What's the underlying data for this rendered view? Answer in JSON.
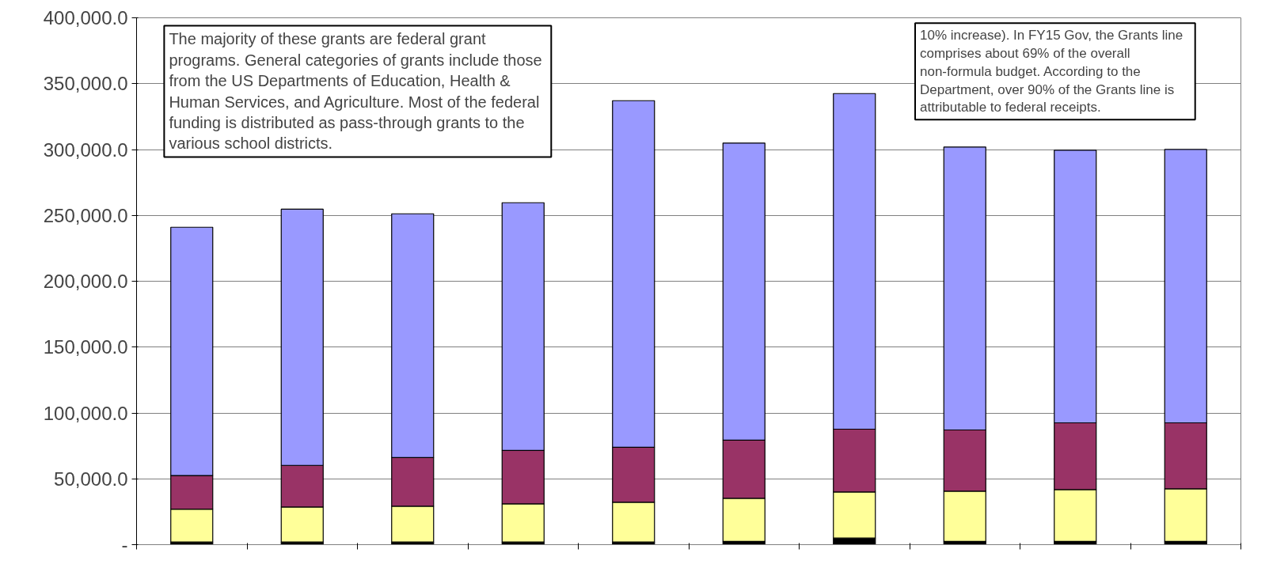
{
  "chart_data": {
    "type": "bar",
    "stacked": true,
    "categories": [
      null,
      null,
      null,
      null,
      null,
      null,
      null,
      null,
      null,
      null
    ],
    "series": [
      {
        "color": "#000000",
        "values": [
          2000,
          2000,
          2000,
          2000,
          2000,
          2500,
          5000,
          2500,
          2500,
          2500
        ]
      },
      {
        "color": "#ffff99",
        "values": [
          24900,
          26600,
          27200,
          29000,
          30200,
          32700,
          35000,
          38100,
          39300,
          39900
        ]
      },
      {
        "color": "#993366",
        "values": [
          25600,
          31600,
          37000,
          40600,
          41800,
          44200,
          47700,
          46500,
          50700,
          50100
        ]
      },
      {
        "color": "#9999ff",
        "values": [
          188500,
          194500,
          185000,
          188000,
          263100,
          225500,
          254800,
          214800,
          207000,
          207600
        ]
      }
    ],
    "ylim": [
      0,
      400000
    ],
    "yticks": [
      {
        "value": 0,
        "label": "-"
      },
      {
        "value": 50000,
        "label": "50,000.0"
      },
      {
        "value": 100000,
        "label": "100,000.0"
      },
      {
        "value": 150000,
        "label": "150,000.0"
      },
      {
        "value": 200000,
        "label": "200,000.0"
      },
      {
        "value": 250000,
        "label": "250,000.0"
      },
      {
        "value": 300000,
        "label": "300,000.0"
      },
      {
        "value": 350000,
        "label": "350,000.0"
      },
      {
        "value": 400000,
        "label": "400,000.0"
      }
    ],
    "grid": "y",
    "tick_labels": "y",
    "annotations": [
      "The majority of these grants are federal grant\nprograms.  General categories of grants include those\nfrom the US Departments of Education, Health &\nHuman Services, and Agriculture.  Most of the federal\nfunding is distributed as pass-through grants to the\nvarious school districts.",
      "10% increase).  In FY15 Gov,  the Grants line\ncomprises about 69% of the overall\nnon-formula budget.  According to the\nDepartment, over 90% of the Grants line is\nattributable to federal receipts."
    ]
  }
}
